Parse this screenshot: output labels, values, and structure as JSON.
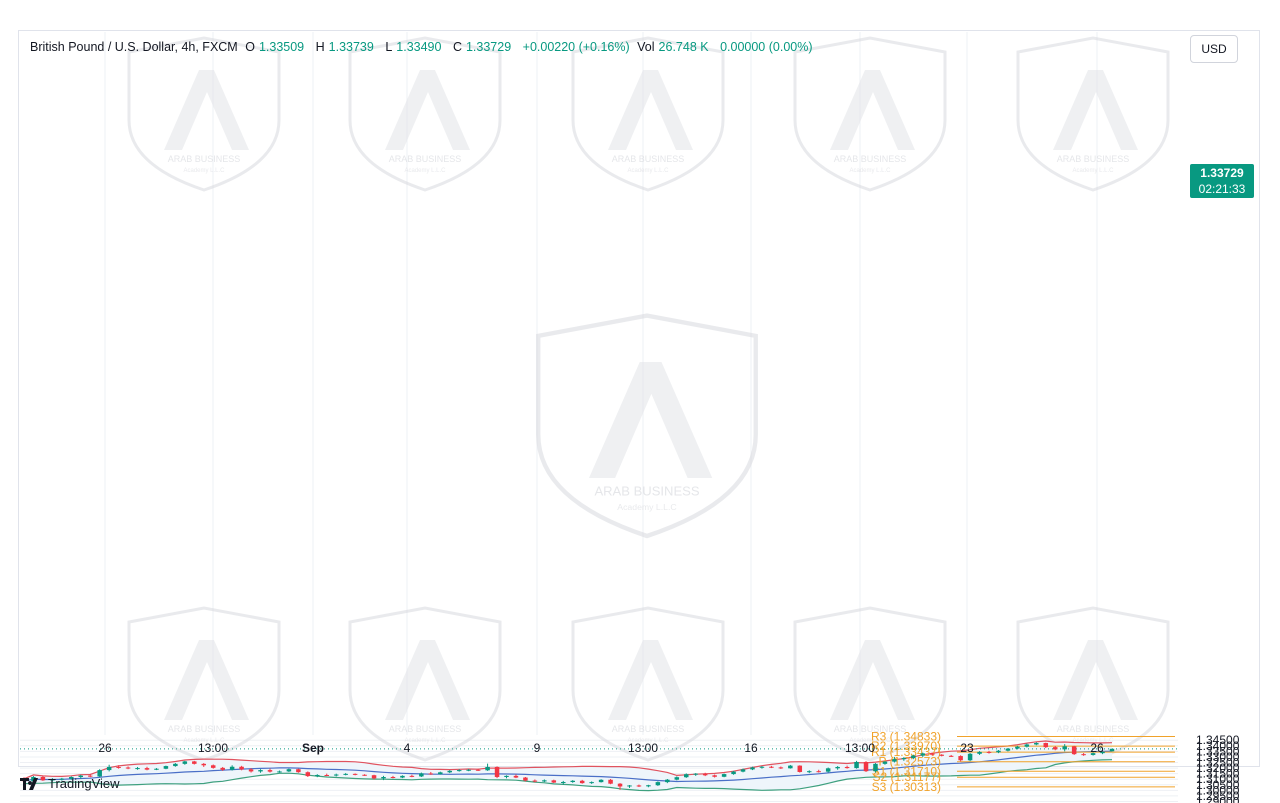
{
  "legend": {
    "symbol": "British Pound / U.S. Dollar, 4h, FXCM",
    "open_label": "O",
    "open": "1.33509",
    "high_label": "H",
    "high": "1.33739",
    "low_label": "L",
    "low": "1.33490",
    "close_label": "C",
    "close": "1.33729",
    "change": "+0.00220 (+0.16%)",
    "vol_label": "Vol",
    "vol": "26.748 K",
    "vol_change": "0.00000 (0.00%)"
  },
  "currency": "USD",
  "price_badge": {
    "price": "1.33729",
    "countdown": "02:21:33"
  },
  "footer": {
    "brand": "TradingView"
  },
  "watermark": {
    "text": "ARAB BUSINESS",
    "sub": "Academy L.L.C"
  },
  "colors": {
    "up": "#089981",
    "down": "#f23645",
    "upper_band": "#e0535f",
    "lower_band": "#3ea07f",
    "basis": "#4a6fc7",
    "band_fill": "#eef5fb",
    "pivot": "#f0a22a",
    "grid": "#eef0f4"
  },
  "chart_data": {
    "type": "candlestick",
    "timeframe": "4h",
    "x_ticks": [
      "26",
      "13:00",
      "Sep",
      "4",
      "9",
      "13:00",
      "16",
      "13:00",
      "23",
      "26"
    ],
    "y_ticks": [
      "1.34500",
      "1.34000",
      "1.33500",
      "1.33000",
      "1.32500",
      "1.32000",
      "1.31500",
      "1.31000",
      "1.30500",
      "1.30000",
      "1.29500",
      "1.29000"
    ],
    "ylim": [
      1.2865,
      1.3505
    ],
    "pivots": [
      {
        "name": "R3",
        "label": "R3 (1.34833)",
        "value": 1.34833
      },
      {
        "name": "R2",
        "label": "R2 (1.33970)",
        "value": 1.3397
      },
      {
        "name": "R1",
        "label": "R1 (1.33437)",
        "value": 1.33437
      },
      {
        "name": "P",
        "label": "P (1.32573)",
        "value": 1.32573
      },
      {
        "name": "S1",
        "label": "S1 (1.31710)",
        "value": 1.3171
      },
      {
        "name": "S2",
        "label": "S2 (1.31177)",
        "value": 1.31177
      },
      {
        "name": "S3",
        "label": "S3 (1.30313)",
        "value": 1.30313
      }
    ],
    "last_price": 1.33729,
    "candles": [
      [
        1.3095,
        1.3118,
        1.3078,
        1.3082
      ],
      [
        1.3082,
        1.3128,
        1.3075,
        1.312
      ],
      [
        1.312,
        1.313,
        1.3085,
        1.309
      ],
      [
        1.309,
        1.311,
        1.3078,
        1.3098
      ],
      [
        1.3098,
        1.3112,
        1.3088,
        1.3105
      ],
      [
        1.3105,
        1.3125,
        1.3095,
        1.312
      ],
      [
        1.312,
        1.314,
        1.3105,
        1.3132
      ],
      [
        1.3132,
        1.3145,
        1.3118,
        1.3125
      ],
      [
        1.3125,
        1.319,
        1.312,
        1.3182
      ],
      [
        1.3182,
        1.323,
        1.317,
        1.321
      ],
      [
        1.321,
        1.3225,
        1.3195,
        1.3205
      ],
      [
        1.3205,
        1.3215,
        1.319,
        1.3198
      ],
      [
        1.3198,
        1.321,
        1.3185,
        1.32
      ],
      [
        1.32,
        1.3212,
        1.318,
        1.3186
      ],
      [
        1.3186,
        1.32,
        1.3182,
        1.3194
      ],
      [
        1.3194,
        1.3222,
        1.319,
        1.3218
      ],
      [
        1.3218,
        1.3245,
        1.3212,
        1.3238
      ],
      [
        1.3238,
        1.3265,
        1.323,
        1.326
      ],
      [
        1.326,
        1.3265,
        1.3232,
        1.3238
      ],
      [
        1.3238,
        1.3245,
        1.321,
        1.3225
      ],
      [
        1.3225,
        1.3232,
        1.3195,
        1.3202
      ],
      [
        1.3202,
        1.321,
        1.3175,
        1.3185
      ],
      [
        1.3185,
        1.3225,
        1.3178,
        1.3212
      ],
      [
        1.3212,
        1.322,
        1.318,
        1.3188
      ],
      [
        1.3188,
        1.32,
        1.316,
        1.317
      ],
      [
        1.317,
        1.319,
        1.3158,
        1.3182
      ],
      [
        1.3182,
        1.3195,
        1.316,
        1.3168
      ],
      [
        1.3168,
        1.3178,
        1.3158,
        1.317
      ],
      [
        1.317,
        1.3195,
        1.3165,
        1.319
      ],
      [
        1.319,
        1.3195,
        1.3158,
        1.3163
      ],
      [
        1.3163,
        1.317,
        1.312,
        1.3128
      ],
      [
        1.3128,
        1.3145,
        1.3118,
        1.3138
      ],
      [
        1.3138,
        1.315,
        1.3128,
        1.3134
      ],
      [
        1.3134,
        1.315,
        1.3125,
        1.3142
      ],
      [
        1.3142,
        1.3155,
        1.3135,
        1.3148
      ],
      [
        1.3148,
        1.3152,
        1.3135,
        1.314
      ],
      [
        1.314,
        1.3145,
        1.313,
        1.3136
      ],
      [
        1.3136,
        1.314,
        1.3098,
        1.3108
      ],
      [
        1.3108,
        1.313,
        1.3092,
        1.312
      ],
      [
        1.312,
        1.313,
        1.3108,
        1.3115
      ],
      [
        1.3115,
        1.3135,
        1.311,
        1.313
      ],
      [
        1.313,
        1.314,
        1.3118,
        1.3125
      ],
      [
        1.3125,
        1.316,
        1.312,
        1.3152
      ],
      [
        1.3152,
        1.3165,
        1.314,
        1.3145
      ],
      [
        1.3145,
        1.3168,
        1.3142,
        1.3162
      ],
      [
        1.3162,
        1.3182,
        1.3155,
        1.3175
      ],
      [
        1.3175,
        1.319,
        1.3168,
        1.3182
      ],
      [
        1.3182,
        1.3192,
        1.3172,
        1.3185
      ],
      [
        1.3185,
        1.3194,
        1.3174,
        1.318
      ],
      [
        1.318,
        1.324,
        1.3175,
        1.321
      ],
      [
        1.321,
        1.3215,
        1.311,
        1.312
      ],
      [
        1.312,
        1.3135,
        1.3108,
        1.313
      ],
      [
        1.313,
        1.3142,
        1.311,
        1.3115
      ],
      [
        1.3115,
        1.312,
        1.308,
        1.3088
      ],
      [
        1.3088,
        1.3098,
        1.3072,
        1.308
      ],
      [
        1.308,
        1.3098,
        1.3074,
        1.309
      ],
      [
        1.309,
        1.3096,
        1.3066,
        1.307
      ],
      [
        1.307,
        1.3085,
        1.305,
        1.3075
      ],
      [
        1.3075,
        1.3092,
        1.3068,
        1.3086
      ],
      [
        1.3086,
        1.3094,
        1.306,
        1.3065
      ],
      [
        1.3065,
        1.308,
        1.3058,
        1.3074
      ],
      [
        1.3074,
        1.31,
        1.307,
        1.3095
      ],
      [
        1.3095,
        1.3102,
        1.3055,
        1.306
      ],
      [
        1.306,
        1.3065,
        1.3005,
        1.3035
      ],
      [
        1.3035,
        1.3048,
        1.3022,
        1.3044
      ],
      [
        1.3044,
        1.3052,
        1.303,
        1.3036
      ],
      [
        1.3036,
        1.305,
        1.3028,
        1.3046
      ],
      [
        1.3046,
        1.308,
        1.304,
        1.3074
      ],
      [
        1.3074,
        1.3102,
        1.3065,
        1.3096
      ],
      [
        1.3096,
        1.3125,
        1.309,
        1.3118
      ],
      [
        1.3118,
        1.3152,
        1.3112,
        1.3145
      ],
      [
        1.3145,
        1.3155,
        1.313,
        1.315
      ],
      [
        1.315,
        1.3158,
        1.3128,
        1.3135
      ],
      [
        1.3135,
        1.3142,
        1.3115,
        1.3122
      ],
      [
        1.3122,
        1.315,
        1.3118,
        1.3146
      ],
      [
        1.3146,
        1.3175,
        1.314,
        1.3168
      ],
      [
        1.3168,
        1.3195,
        1.3162,
        1.3188
      ],
      [
        1.3188,
        1.3212,
        1.3182,
        1.3205
      ],
      [
        1.3205,
        1.3218,
        1.3195,
        1.3212
      ],
      [
        1.3212,
        1.322,
        1.32,
        1.3206
      ],
      [
        1.3206,
        1.3214,
        1.3192,
        1.3198
      ],
      [
        1.3198,
        1.3228,
        1.3195,
        1.3222
      ],
      [
        1.3222,
        1.3225,
        1.316,
        1.3165
      ],
      [
        1.3165,
        1.318,
        1.3155,
        1.3172
      ],
      [
        1.3172,
        1.3185,
        1.316,
        1.3168
      ],
      [
        1.3168,
        1.3205,
        1.316,
        1.3198
      ],
      [
        1.3198,
        1.3218,
        1.3185,
        1.321
      ],
      [
        1.321,
        1.3222,
        1.3195,
        1.32
      ],
      [
        1.32,
        1.3265,
        1.3195,
        1.3255
      ],
      [
        1.3255,
        1.3262,
        1.3165,
        1.3172
      ],
      [
        1.3172,
        1.3245,
        1.316,
        1.3238
      ],
      [
        1.3238,
        1.3262,
        1.323,
        1.3258
      ],
      [
        1.3258,
        1.33,
        1.325,
        1.328
      ],
      [
        1.328,
        1.3298,
        1.3265,
        1.329
      ],
      [
        1.329,
        1.332,
        1.328,
        1.3312
      ],
      [
        1.3312,
        1.334,
        1.33,
        1.3332
      ],
      [
        1.3332,
        1.3338,
        1.3312,
        1.332
      ],
      [
        1.332,
        1.3325,
        1.3305,
        1.331
      ],
      [
        1.331,
        1.3318,
        1.33,
        1.3308
      ],
      [
        1.3308,
        1.3315,
        1.326,
        1.327
      ],
      [
        1.327,
        1.3335,
        1.3262,
        1.3328
      ],
      [
        1.3328,
        1.3352,
        1.3318,
        1.3345
      ],
      [
        1.3345,
        1.3355,
        1.333,
        1.3342
      ],
      [
        1.3342,
        1.3362,
        1.3334,
        1.3356
      ],
      [
        1.3356,
        1.338,
        1.335,
        1.3375
      ],
      [
        1.3375,
        1.34,
        1.3368,
        1.3392
      ],
      [
        1.3392,
        1.342,
        1.3385,
        1.3412
      ],
      [
        1.3412,
        1.3432,
        1.3405,
        1.3425
      ],
      [
        1.3425,
        1.3428,
        1.338,
        1.3388
      ],
      [
        1.3388,
        1.3398,
        1.336,
        1.3368
      ],
      [
        1.3368,
        1.3415,
        1.335,
        1.3395
      ],
      [
        1.3395,
        1.34,
        1.3318,
        1.3325
      ],
      [
        1.3325,
        1.3335,
        1.331,
        1.3318
      ],
      [
        1.3318,
        1.334,
        1.3312,
        1.3334
      ],
      [
        1.3334,
        1.3348,
        1.3325,
        1.3345
      ],
      [
        1.3351,
        1.3374,
        1.3349,
        1.3373
      ]
    ]
  }
}
